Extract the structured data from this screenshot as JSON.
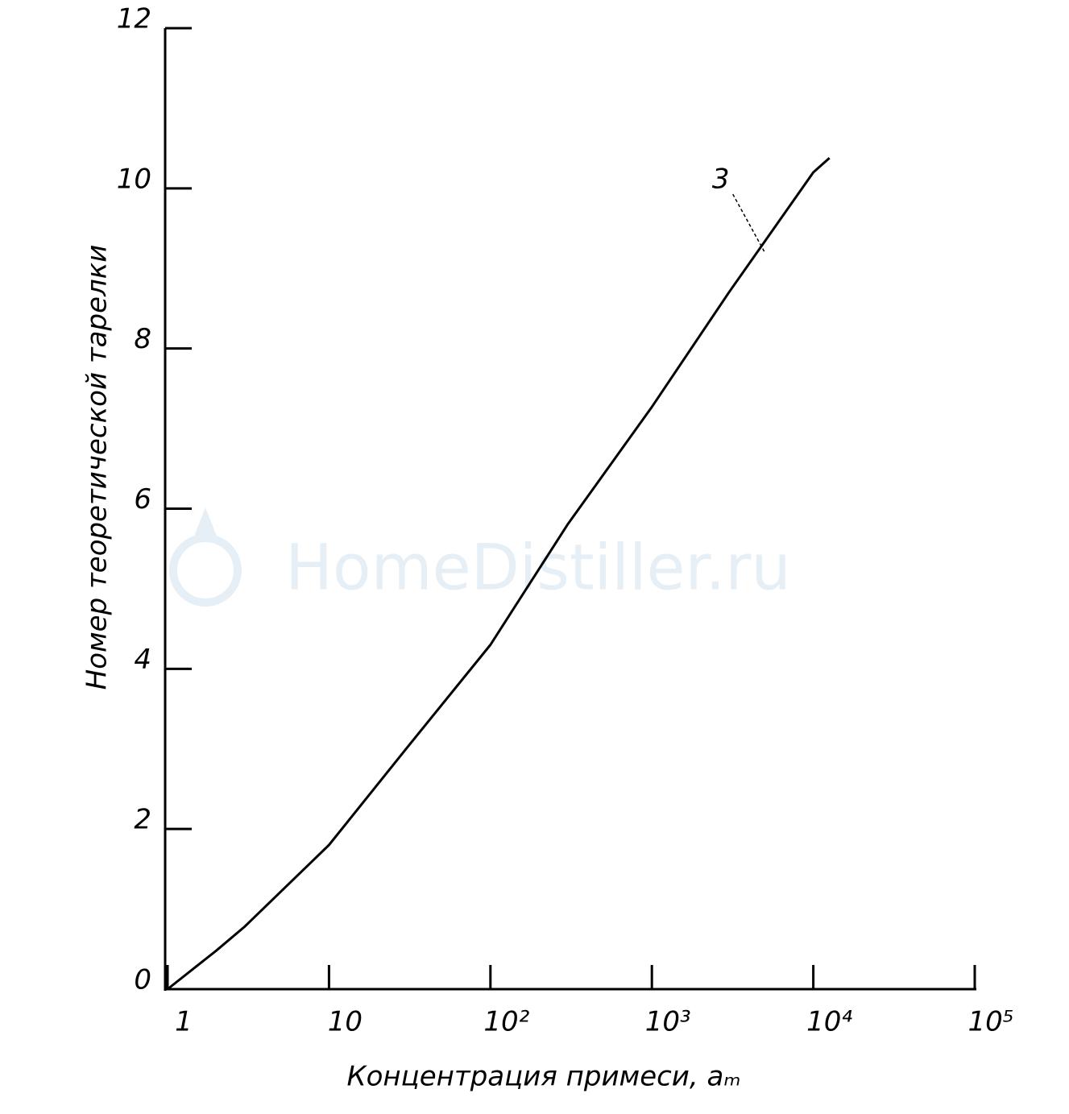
{
  "chart_data": {
    "type": "line",
    "watermark": "HomeDistiller.ru",
    "x_label": "Концентрация примеси, aₘ",
    "y_label": "Номер теоретической тарелки",
    "xscale": "log",
    "xlim": [
      1,
      100000
    ],
    "ylim": [
      0,
      12
    ],
    "xticks": [
      1,
      10,
      {
        "value": 100,
        "label": "10²"
      },
      {
        "value": 1000,
        "label": "10³"
      },
      {
        "value": 10000,
        "label": "10⁴"
      },
      {
        "value": 100000,
        "label": "10⁵"
      }
    ],
    "yticks": [
      0,
      2,
      4,
      6,
      8,
      10,
      12
    ],
    "grid": false,
    "series": [
      {
        "name": "3",
        "color": "#000000",
        "x": [
          1,
          2,
          3,
          10,
          30,
          100,
          300,
          1000,
          3000,
          10000,
          12600
        ],
        "values": [
          0,
          0.48,
          0.78,
          1.8,
          3.0,
          4.3,
          5.8,
          7.27,
          8.7,
          10.2,
          10.38
        ]
      }
    ]
  }
}
